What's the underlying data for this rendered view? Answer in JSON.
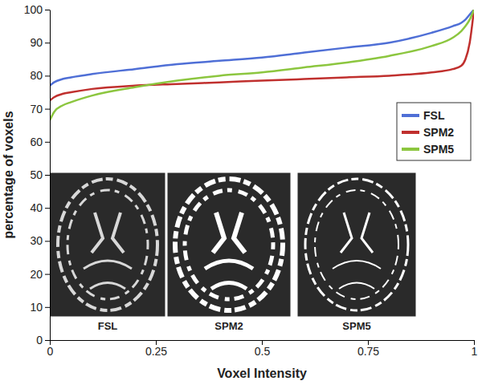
{
  "chart_data": {
    "type": "line",
    "x_label": "Voxel Intensity",
    "y_label": "percentage of voxels",
    "x": [
      0,
      0.01,
      0.03,
      0.05,
      0.1,
      0.2,
      0.3,
      0.4,
      0.5,
      0.6,
      0.7,
      0.8,
      0.9,
      0.95,
      0.97,
      0.98,
      0.99,
      1
    ],
    "series": [
      {
        "name": "FSL",
        "color": "#4f6fd6",
        "values": [
          77,
          78,
          79,
          79.5,
          80.5,
          82,
          83.5,
          84.5,
          85.5,
          87,
          88.5,
          90,
          93,
          95,
          96,
          97,
          98.5,
          100
        ]
      },
      {
        "name": "SPM2",
        "color": "#c0302e",
        "values": [
          72.5,
          73.5,
          74.5,
          75,
          76,
          77,
          77.5,
          78,
          78.5,
          79,
          79.5,
          80,
          81,
          82,
          83,
          85,
          90,
          100
        ]
      },
      {
        "name": "SPM5",
        "color": "#8cc63f",
        "values": [
          66.5,
          69,
          71,
          72,
          74,
          76.5,
          78.5,
          80,
          81,
          82.5,
          84,
          86,
          89,
          91.5,
          93.5,
          95,
          97,
          100
        ]
      }
    ],
    "xlim": [
      0,
      1
    ],
    "xticks": [
      0,
      0.25,
      0.5,
      0.75,
      1
    ],
    "ylim": [
      0,
      100
    ],
    "yticks": [
      0,
      10,
      20,
      30,
      40,
      50,
      60,
      70,
      80,
      90,
      100
    ],
    "grid": false,
    "legend": "right",
    "annotations": [
      "FSL",
      "SPM2",
      "SPM5"
    ]
  }
}
